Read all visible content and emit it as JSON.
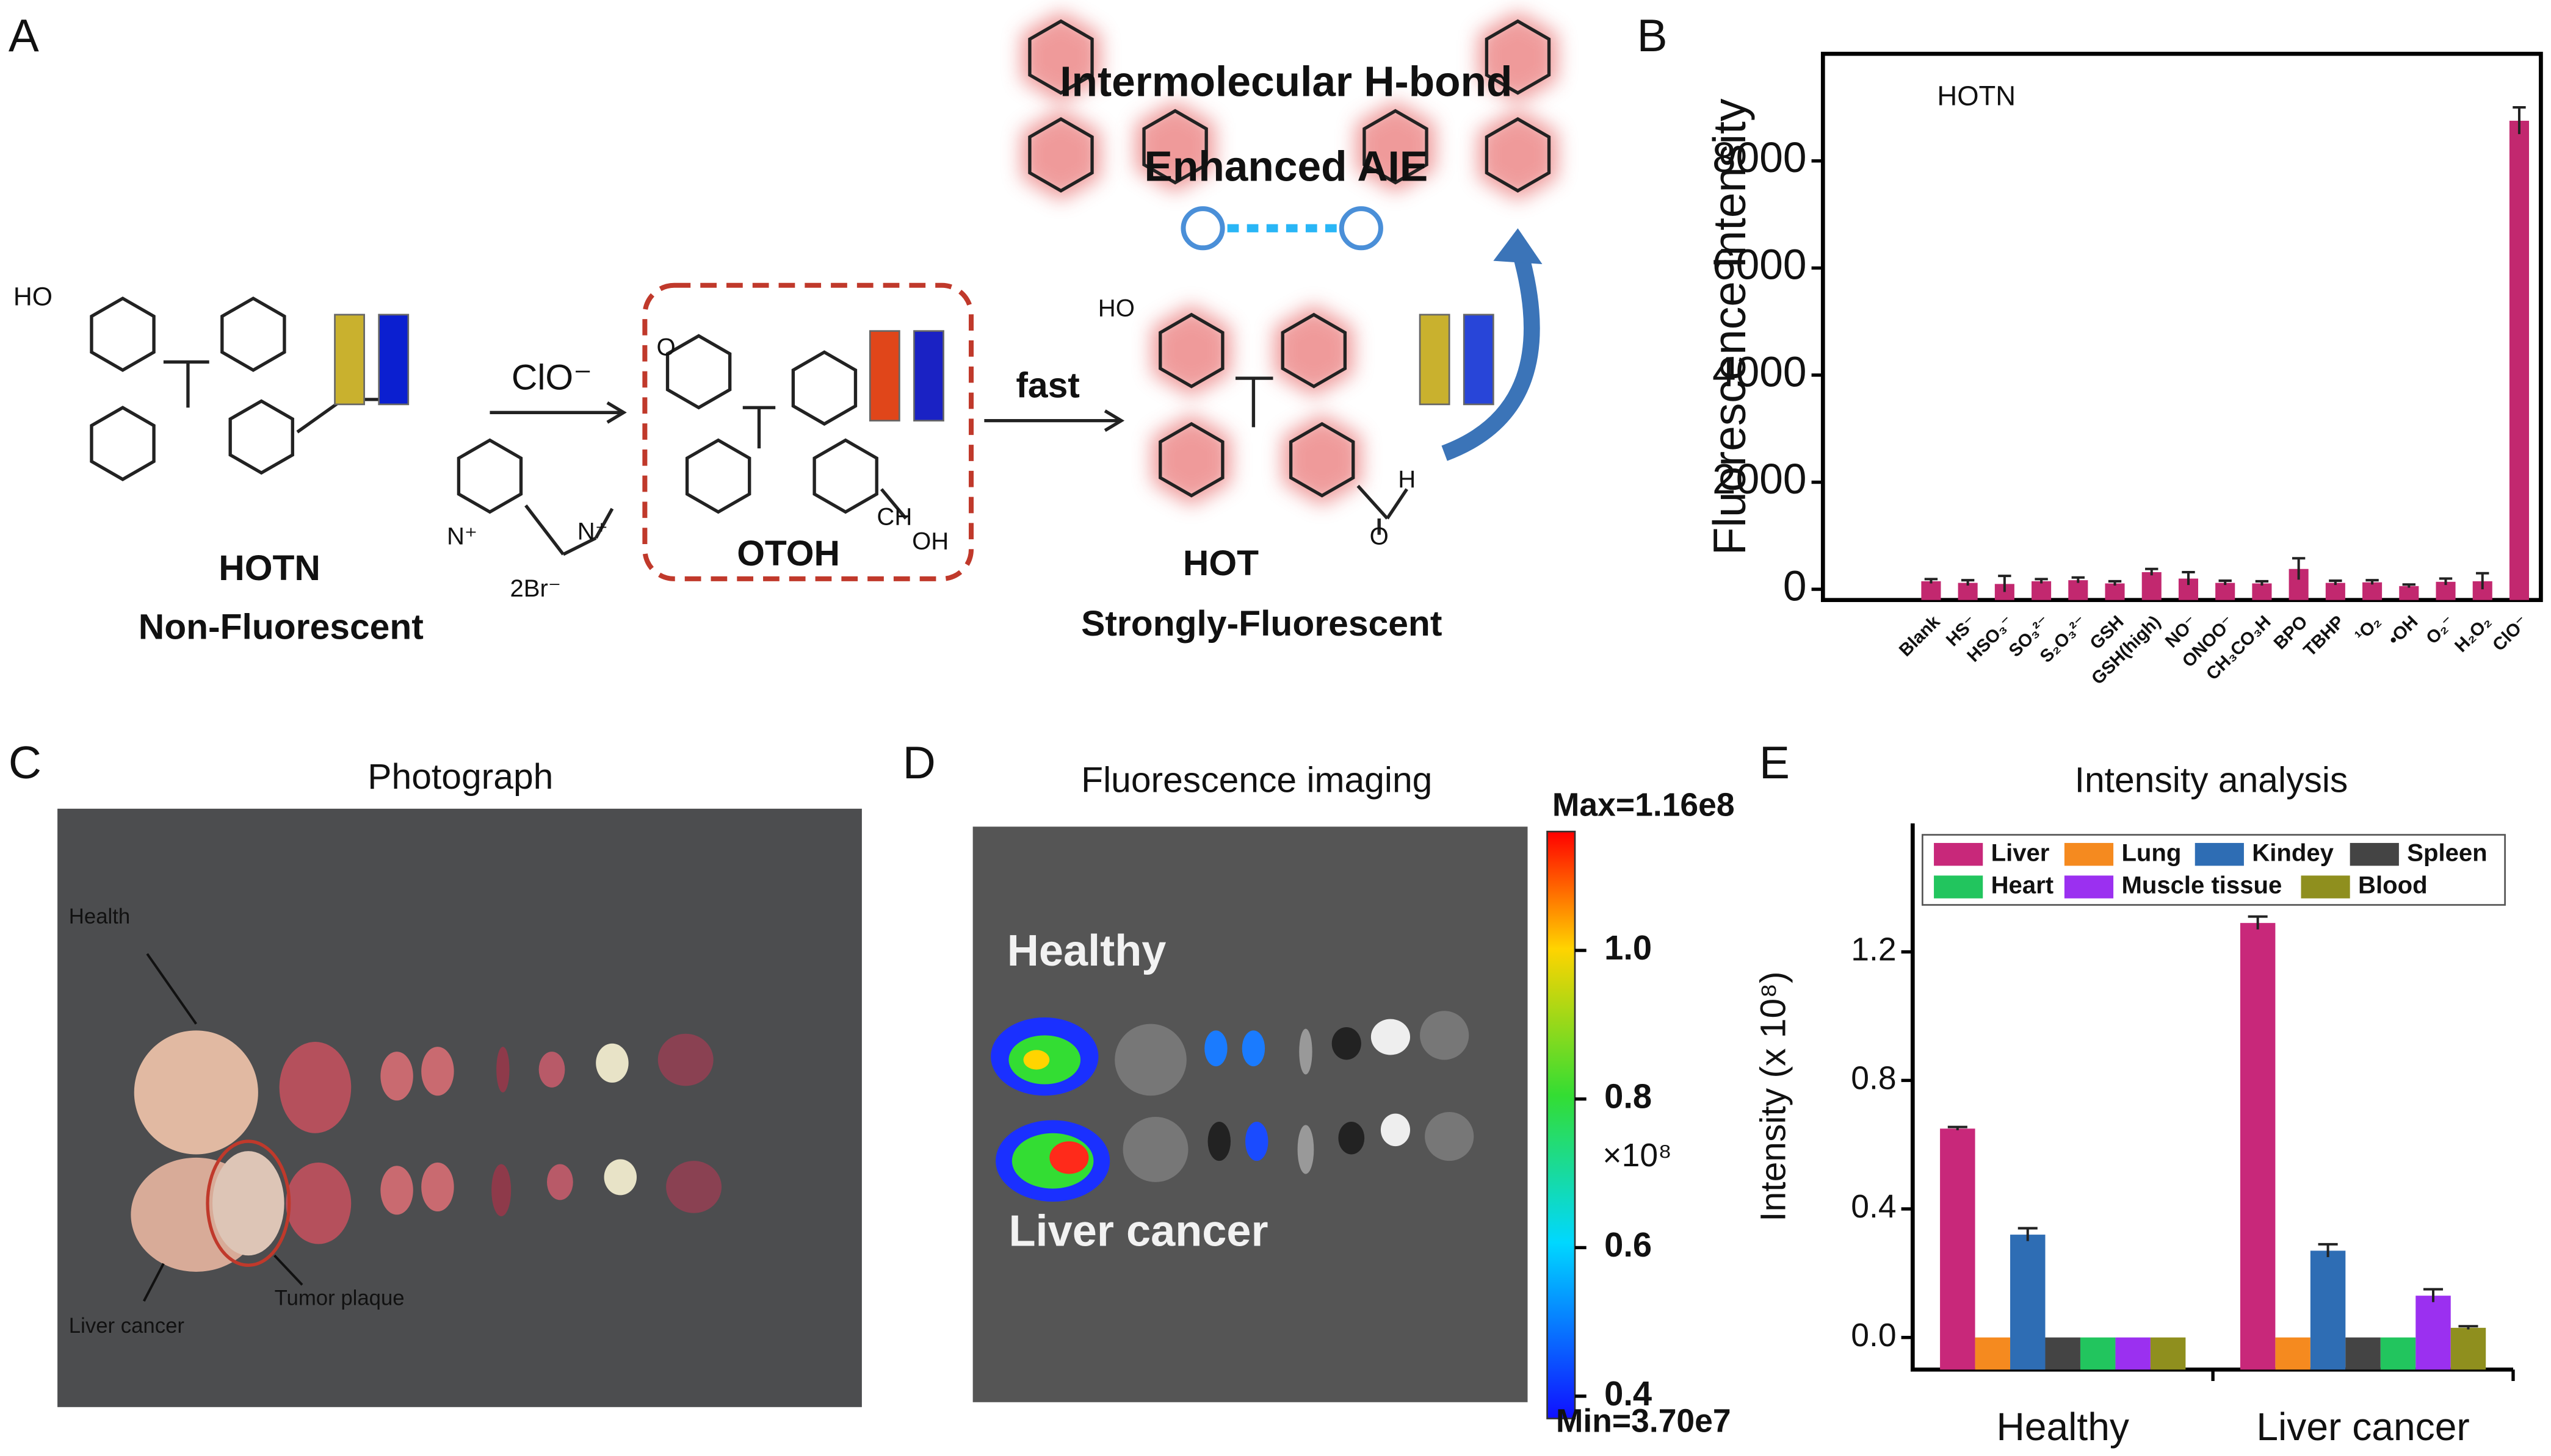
{
  "panel_labels": [
    "A",
    "B",
    "C",
    "D",
    "E"
  ],
  "panel_a": {
    "h_bond_label": "Intermolecular H-bond",
    "aie_label": "Enhanced AIE",
    "reagent": "ClO⁻",
    "speed": "fast",
    "counter_ion": "2Br⁻",
    "compounds": [
      {
        "name": "HOTN",
        "property": "Non-Fluorescent"
      },
      {
        "name": "OTOH"
      },
      {
        "name": "HOT",
        "property": "Strongly-Fluorescent"
      }
    ],
    "atoms": [
      "HO",
      "N⁺",
      "N⁺",
      "O",
      "CH",
      "OH",
      "HO",
      "H",
      "O"
    ]
  },
  "panel_c": {
    "title": "Photograph",
    "labels": [
      "Health",
      "Liver cancer",
      "Tumor plaque"
    ]
  },
  "panel_d": {
    "title": "Fluorescence imaging",
    "labels": [
      "Healthy",
      "Liver cancer"
    ],
    "colorbar": {
      "max_label": "Max=1.16e8",
      "min_label": "Min=3.70e7",
      "lim": [
        0.37,
        1.16
      ],
      "ticks": [
        {
          "value": 1,
          "label": "1.0"
        },
        0.8,
        0.6,
        0.4
      ],
      "unit": "×10⁸"
    }
  },
  "chart_data": [
    {
      "type": "bar",
      "ylabel": "Fluorescence Intensity",
      "annotation": "HOTN",
      "categories": [
        "Blank",
        "HS⁻",
        "HSO₃⁻",
        "SO₃²⁻",
        "S₂O₃²⁻",
        "GSH",
        "GSH(high)",
        "NO⁻",
        "ONOO⁻",
        "CH₃CO₃H",
        "BPO",
        "TBHP",
        "¹O₂",
        "•OH",
        "O₂⁻",
        "H₂O₂",
        "ClO⁻"
      ],
      "values": [
        150,
        120,
        100,
        150,
        170,
        110,
        320,
        200,
        120,
        110,
        380,
        120,
        130,
        60,
        140,
        150,
        8750
      ],
      "errors": [
        40,
        50,
        150,
        40,
        50,
        40,
        60,
        120,
        40,
        40,
        200,
        40,
        40,
        30,
        60,
        150,
        250
      ],
      "color": "#c2286f",
      "ylim": [
        -200,
        10000
      ],
      "yticks": [
        0,
        2000,
        4000,
        6000,
        8000
      ]
    },
    {
      "type": "grouped_bar",
      "title": "Intensity analysis",
      "ylabel": "Intensity (x 10⁸)",
      "categories": [
        "Healthy",
        "Liver cancer"
      ],
      "series": [
        {
          "name": "Liver",
          "color": "#c8287a",
          "values": [
            0.65,
            1.29
          ],
          "errors": [
            0.005,
            0.02
          ]
        },
        {
          "name": "Lung",
          "color": "#f58a1f",
          "values": [
            0,
            0
          ],
          "errors": [
            0,
            0
          ]
        },
        {
          "name": "Kindey",
          "color": "#2e6db4",
          "values": [
            0.32,
            0.27
          ],
          "errors": [
            0.02,
            0.02
          ]
        },
        {
          "name": "Spleen",
          "color": "#444444",
          "values": [
            0,
            0
          ],
          "errors": [
            0,
            0
          ]
        },
        {
          "name": "Heart",
          "color": "#22c55e",
          "values": [
            0,
            0
          ],
          "errors": [
            0,
            0
          ]
        },
        {
          "name": "Muscle tissue",
          "color": "#9b30f0",
          "values": [
            0,
            0.13
          ],
          "errors": [
            0,
            0.02
          ]
        },
        {
          "name": "Blood",
          "color": "#8f8f1e",
          "values": [
            0,
            0.03
          ],
          "errors": [
            0,
            0.005
          ]
        }
      ],
      "ylim": [
        -0.1,
        1.6
      ],
      "yticks": [
        {
          "value": 0,
          "label": "0.0"
        },
        0.4,
        0.8,
        1.2
      ]
    }
  ]
}
